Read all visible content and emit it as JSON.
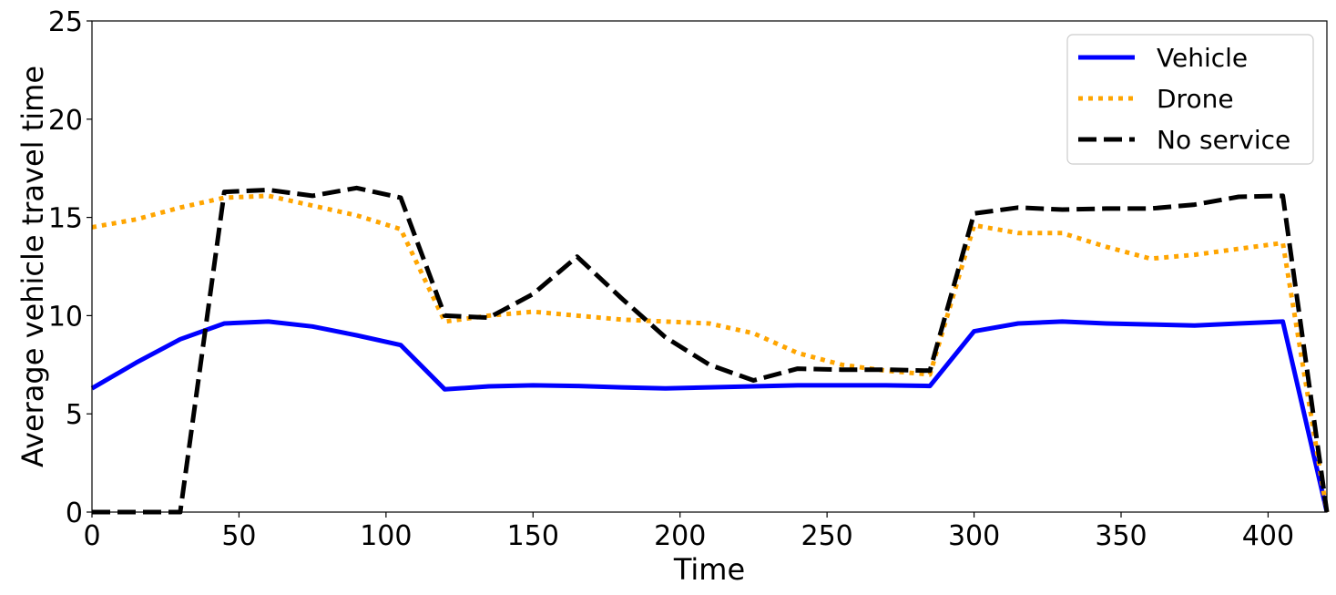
{
  "chart_data": {
    "type": "line",
    "title": "",
    "xlabel": "Time",
    "ylabel": "Average vehicle travel time",
    "xlim": [
      0,
      420
    ],
    "ylim": [
      0,
      25
    ],
    "xticks": [
      0,
      50,
      100,
      150,
      200,
      250,
      300,
      350,
      400
    ],
    "yticks": [
      0,
      5,
      10,
      15,
      20,
      25
    ],
    "xtick_labels": [
      "0",
      "50",
      "100",
      "150",
      "200",
      "250",
      "300",
      "350",
      "400"
    ],
    "ytick_labels": [
      "0",
      "5",
      "10",
      "15",
      "20",
      "25"
    ],
    "grid": false,
    "legend_position": "top-right",
    "series": [
      {
        "name": "Vehicle",
        "color": "#0000ff",
        "style": "solid",
        "x": [
          0,
          15,
          30,
          45,
          60,
          75,
          90,
          105,
          120,
          135,
          150,
          165,
          180,
          195,
          210,
          225,
          240,
          255,
          270,
          285,
          300,
          315,
          330,
          345,
          360,
          375,
          390,
          405,
          420
        ],
        "y": [
          6.3,
          7.6,
          8.8,
          9.6,
          9.7,
          9.45,
          9.0,
          8.5,
          6.25,
          6.4,
          6.45,
          6.42,
          6.35,
          6.3,
          6.35,
          6.4,
          6.45,
          6.45,
          6.45,
          6.42,
          9.2,
          9.6,
          9.7,
          9.6,
          9.55,
          9.5,
          9.6,
          9.7,
          0.0
        ]
      },
      {
        "name": "Drone",
        "color": "#ffa500",
        "style": "dotted",
        "x": [
          0,
          15,
          30,
          45,
          60,
          75,
          90,
          105,
          120,
          135,
          150,
          165,
          180,
          195,
          210,
          225,
          240,
          255,
          270,
          285,
          300,
          315,
          330,
          345,
          360,
          375,
          390,
          405,
          420
        ],
        "y": [
          14.5,
          14.9,
          15.5,
          16.0,
          16.1,
          15.6,
          15.1,
          14.4,
          9.7,
          10.0,
          10.2,
          10.0,
          9.8,
          9.7,
          9.6,
          9.1,
          8.1,
          7.5,
          7.2,
          7.0,
          14.6,
          14.2,
          14.2,
          13.5,
          12.9,
          13.1,
          13.4,
          13.7,
          0.0
        ]
      },
      {
        "name": "No service",
        "color": "#000000",
        "style": "dashed",
        "x": [
          0,
          15,
          30,
          45,
          60,
          75,
          90,
          105,
          120,
          135,
          150,
          165,
          180,
          195,
          210,
          225,
          240,
          255,
          270,
          285,
          300,
          315,
          330,
          345,
          360,
          375,
          390,
          405,
          420
        ],
        "y": [
          0.0,
          0.0,
          0.0,
          16.3,
          16.4,
          16.1,
          16.5,
          16.0,
          10.0,
          9.9,
          11.1,
          13.0,
          10.9,
          8.9,
          7.5,
          6.7,
          7.3,
          7.25,
          7.25,
          7.2,
          15.2,
          15.5,
          15.4,
          15.45,
          15.45,
          15.65,
          16.05,
          16.1,
          0.0
        ]
      }
    ]
  }
}
